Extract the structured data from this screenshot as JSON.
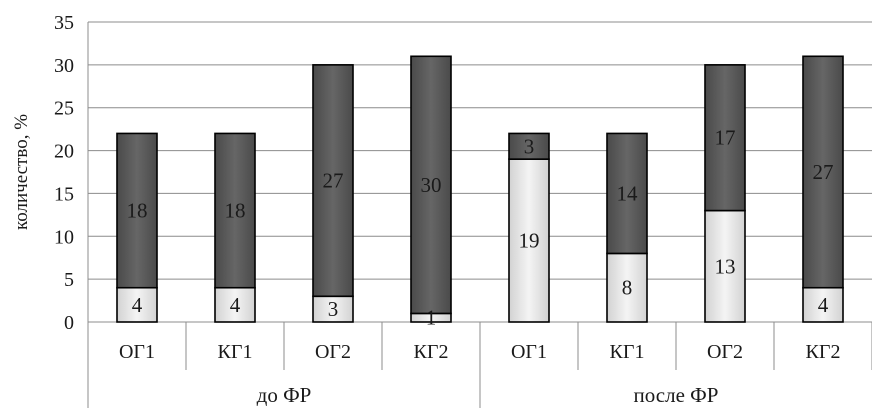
{
  "chart_data": {
    "type": "bar",
    "stacked": true,
    "title": "",
    "xlabel": "",
    "ylabel": "количество, %",
    "ylim": [
      0,
      35
    ],
    "yticks": [
      0,
      5,
      10,
      15,
      20,
      25,
      30,
      35
    ],
    "grid": true,
    "legend": "none",
    "groups": [
      {
        "label": "до ФР",
        "categories": [
          "ОГ1",
          "КГ1",
          "ОГ2",
          "КГ2"
        ]
      },
      {
        "label": "после ФР",
        "categories": [
          "ОГ1",
          "КГ1",
          "ОГ2",
          "КГ2"
        ]
      }
    ],
    "categories": [
      "ОГ1",
      "КГ1",
      "ОГ2",
      "КГ2",
      "ОГ1",
      "КГ1",
      "ОГ2",
      "КГ2"
    ],
    "series": [
      {
        "values": [
          4,
          4,
          3,
          1,
          19,
          8,
          13,
          4
        ],
        "color": "#e8e8e8"
      },
      {
        "values": [
          18,
          18,
          27,
          30,
          3,
          14,
          17,
          27
        ],
        "color": "#5b5b5b"
      }
    ]
  }
}
